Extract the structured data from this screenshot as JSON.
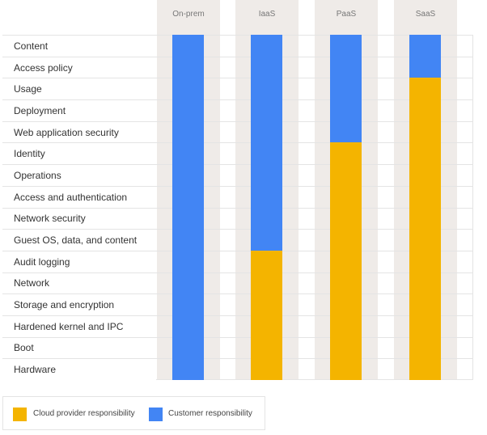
{
  "colors": {
    "cloud_provider": "#f4b400",
    "customer": "#4285f4"
  },
  "models": [
    {
      "label": "On-prem",
      "customer_layers_from_top": 16
    },
    {
      "label": "IaaS",
      "customer_layers_from_top": 10
    },
    {
      "label": "PaaS",
      "customer_layers_from_top": 5
    },
    {
      "label": "SaaS",
      "customer_layers_from_top": 2
    }
  ],
  "layers": [
    "Content",
    "Access policy",
    "Usage",
    "Deployment",
    "Web application security",
    "Identity",
    "Operations",
    "Access and authentication",
    "Network security",
    "Guest OS, data, and content",
    "Audit logging",
    "Network",
    "Storage and encryption",
    "Hardened kernel and IPC",
    "Boot",
    "Hardware"
  ],
  "legend": {
    "cloud_provider": "Cloud provider responsibility",
    "customer": "Customer responsibility"
  }
}
